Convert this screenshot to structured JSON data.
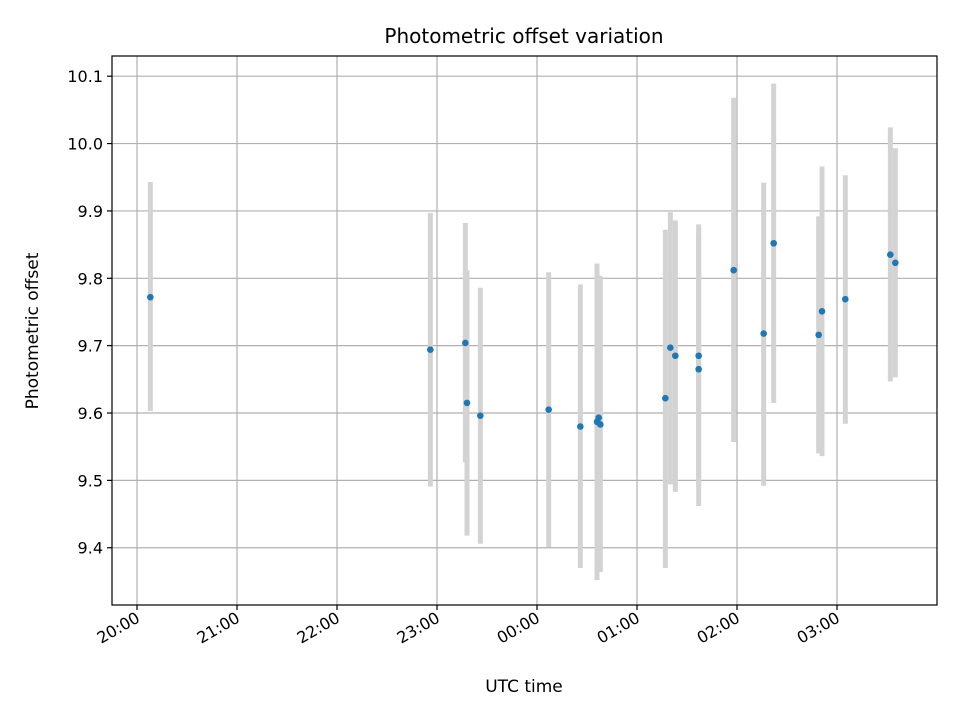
{
  "chart_data": {
    "type": "scatter",
    "title": "Photometric offset variation",
    "xlabel": "UTC time",
    "ylabel": "Photometric offset",
    "x_ticks": [
      "20:00",
      "21:00",
      "22:00",
      "23:00",
      "00:00",
      "01:00",
      "02:00",
      "03:00"
    ],
    "y_ticks": [
      "9.4",
      "9.5",
      "9.6",
      "9.7",
      "9.8",
      "9.9",
      "10.0",
      "10.1"
    ],
    "xlim": [
      "19:45",
      "04:00"
    ],
    "ylim": [
      9.315,
      10.13
    ],
    "grid": true,
    "colors": {
      "point": "#1f77b4",
      "errorbar": "#d3d3d3",
      "grid": "#b0b0b0"
    },
    "points": [
      {
        "x": "20:08",
        "y": 9.772,
        "y_low": 9.603,
        "y_high": 9.943
      },
      {
        "x": "22:56",
        "y": 9.694,
        "y_low": 9.491,
        "y_high": 9.897
      },
      {
        "x": "23:17",
        "y": 9.704,
        "y_low": 9.527,
        "y_high": 9.882
      },
      {
        "x": "23:18",
        "y": 9.615,
        "y_low": 9.418,
        "y_high": 9.812
      },
      {
        "x": "23:26",
        "y": 9.596,
        "y_low": 9.406,
        "y_high": 9.786
      },
      {
        "x": "00:07",
        "y": 9.605,
        "y_low": 9.401,
        "y_high": 9.809
      },
      {
        "x": "00:26",
        "y": 9.58,
        "y_low": 9.37,
        "y_high": 9.791
      },
      {
        "x": "00:36",
        "y": 9.587,
        "y_low": 9.352,
        "y_high": 9.822
      },
      {
        "x": "00:37",
        "y": 9.593,
        "y_low": 9.383,
        "y_high": 9.804
      },
      {
        "x": "00:38",
        "y": 9.583,
        "y_low": 9.364,
        "y_high": 9.803
      },
      {
        "x": "01:17",
        "y": 9.622,
        "y_low": 9.37,
        "y_high": 9.872
      },
      {
        "x": "01:20",
        "y": 9.697,
        "y_low": 9.494,
        "y_high": 9.898
      },
      {
        "x": "01:23",
        "y": 9.685,
        "y_low": 9.483,
        "y_high": 9.886
      },
      {
        "x": "01:37",
        "y": 9.685,
        "y_low": 9.49,
        "y_high": 9.88
      },
      {
        "x": "01:37",
        "y": 9.665,
        "y_low": 9.462,
        "y_high": 9.867
      },
      {
        "x": "01:58",
        "y": 9.812,
        "y_low": 9.557,
        "y_high": 10.068
      },
      {
        "x": "02:16",
        "y": 9.718,
        "y_low": 9.492,
        "y_high": 9.942
      },
      {
        "x": "02:22",
        "y": 9.852,
        "y_low": 9.615,
        "y_high": 10.089
      },
      {
        "x": "02:49",
        "y": 9.716,
        "y_low": 9.54,
        "y_high": 9.892
      },
      {
        "x": "02:51",
        "y": 9.751,
        "y_low": 9.536,
        "y_high": 9.966
      },
      {
        "x": "03:05",
        "y": 9.769,
        "y_low": 9.584,
        "y_high": 9.953
      },
      {
        "x": "03:32",
        "y": 9.835,
        "y_low": 9.647,
        "y_high": 10.024
      },
      {
        "x": "03:35",
        "y": 9.823,
        "y_low": 9.653,
        "y_high": 9.993
      }
    ]
  }
}
